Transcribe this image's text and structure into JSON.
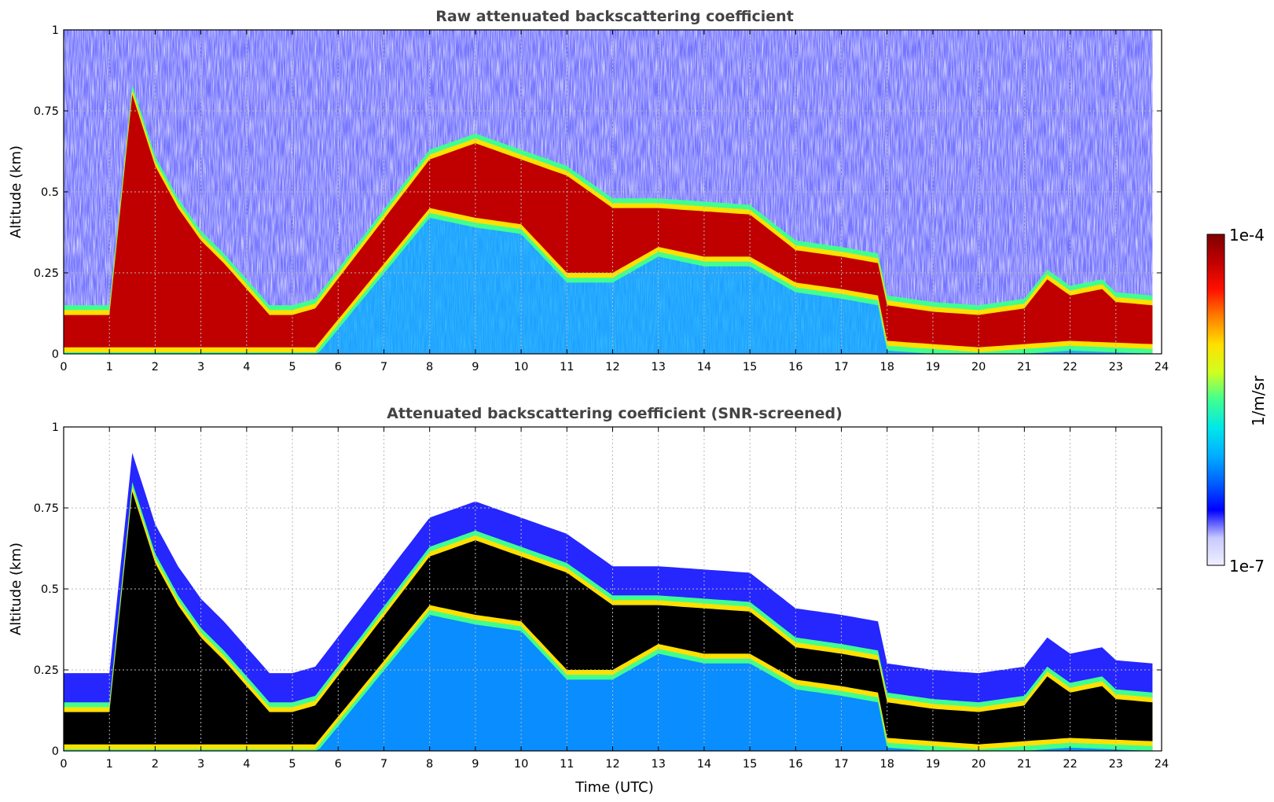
{
  "chart_data": [
    {
      "type": "heatmap",
      "title": "Raw attenuated backscattering coefficient",
      "xlabel": "",
      "ylabel": "Altitude (km)",
      "xlim": [
        0,
        24
      ],
      "ylim": [
        0,
        1
      ],
      "xticks": [
        "0",
        "1",
        "2",
        "3",
        "4",
        "5",
        "6",
        "7",
        "8",
        "9",
        "10",
        "11",
        "12",
        "13",
        "14",
        "15",
        "16",
        "17",
        "18",
        "19",
        "20",
        "21",
        "22",
        "23",
        "24"
      ],
      "yticks": [
        "0",
        "0.25",
        "0.5",
        "0.75",
        "1"
      ],
      "yticks_values": [
        0,
        0.25,
        0.5,
        0.75,
        1
      ],
      "grid": true,
      "screened": false,
      "cloud_layer_top_km": [
        [
          0,
          0.12
        ],
        [
          0.5,
          0.12
        ],
        [
          1.0,
          0.12
        ],
        [
          1.5,
          0.8
        ],
        [
          2.0,
          0.58
        ],
        [
          2.5,
          0.45
        ],
        [
          3.0,
          0.35
        ],
        [
          3.5,
          0.28
        ],
        [
          4.0,
          0.2
        ],
        [
          4.5,
          0.12
        ],
        [
          5.0,
          0.12
        ],
        [
          5.5,
          0.14
        ],
        [
          8.0,
          0.6
        ],
        [
          9.0,
          0.65
        ],
        [
          10.0,
          0.6
        ],
        [
          11.0,
          0.55
        ],
        [
          12.0,
          0.45
        ],
        [
          13.0,
          0.45
        ],
        [
          14.0,
          0.44
        ],
        [
          15.0,
          0.43
        ],
        [
          16.0,
          0.32
        ],
        [
          17.0,
          0.3
        ],
        [
          17.8,
          0.28
        ],
        [
          18.0,
          0.15
        ],
        [
          19.0,
          0.13
        ],
        [
          20.0,
          0.12
        ],
        [
          21.0,
          0.14
        ],
        [
          21.5,
          0.23
        ],
        [
          22.0,
          0.18
        ],
        [
          22.7,
          0.2
        ],
        [
          23.0,
          0.16
        ],
        [
          23.8,
          0.15
        ]
      ],
      "cloud_layer_bottom_km": [
        [
          0,
          0.02
        ],
        [
          5.5,
          0.02
        ],
        [
          8.0,
          0.45
        ],
        [
          9.0,
          0.42
        ],
        [
          10.0,
          0.4
        ],
        [
          11.0,
          0.25
        ],
        [
          12.0,
          0.25
        ],
        [
          13.0,
          0.33
        ],
        [
          14.0,
          0.3
        ],
        [
          15.0,
          0.3
        ],
        [
          16.0,
          0.22
        ],
        [
          17.0,
          0.2
        ],
        [
          17.8,
          0.18
        ],
        [
          18.0,
          0.04
        ],
        [
          19.0,
          0.03
        ],
        [
          20.0,
          0.02
        ],
        [
          21.0,
          0.03
        ],
        [
          22.0,
          0.04
        ],
        [
          23.8,
          0.03
        ]
      ]
    },
    {
      "type": "heatmap",
      "title": "Attenuated backscattering coefficient (SNR-screened)",
      "xlabel": "Time (UTC)",
      "ylabel": "Altitude (km)",
      "xlim": [
        0,
        24
      ],
      "ylim": [
        0,
        1
      ],
      "xticks": [
        "0",
        "1",
        "2",
        "3",
        "4",
        "5",
        "6",
        "7",
        "8",
        "9",
        "10",
        "11",
        "12",
        "13",
        "14",
        "15",
        "16",
        "17",
        "18",
        "19",
        "20",
        "21",
        "22",
        "23",
        "24"
      ],
      "yticks": [
        "0",
        "0.25",
        "0.5",
        "0.75",
        "1"
      ],
      "yticks_values": [
        0,
        0.25,
        0.5,
        0.75,
        1
      ],
      "grid": true,
      "screened": true,
      "cloud_layer_top_km": [
        [
          0,
          0.12
        ],
        [
          0.5,
          0.12
        ],
        [
          1.0,
          0.12
        ],
        [
          1.5,
          0.8
        ],
        [
          2.0,
          0.58
        ],
        [
          2.5,
          0.45
        ],
        [
          3.0,
          0.35
        ],
        [
          3.5,
          0.28
        ],
        [
          4.0,
          0.2
        ],
        [
          4.5,
          0.12
        ],
        [
          5.0,
          0.12
        ],
        [
          5.5,
          0.14
        ],
        [
          8.0,
          0.6
        ],
        [
          9.0,
          0.65
        ],
        [
          10.0,
          0.6
        ],
        [
          11.0,
          0.55
        ],
        [
          12.0,
          0.45
        ],
        [
          13.0,
          0.45
        ],
        [
          14.0,
          0.44
        ],
        [
          15.0,
          0.43
        ],
        [
          16.0,
          0.32
        ],
        [
          17.0,
          0.3
        ],
        [
          17.8,
          0.28
        ],
        [
          18.0,
          0.15
        ],
        [
          19.0,
          0.13
        ],
        [
          20.0,
          0.12
        ],
        [
          21.0,
          0.14
        ],
        [
          21.5,
          0.23
        ],
        [
          22.0,
          0.18
        ],
        [
          22.7,
          0.2
        ],
        [
          23.0,
          0.16
        ],
        [
          23.8,
          0.15
        ]
      ],
      "cloud_layer_bottom_km": [
        [
          0,
          0.02
        ],
        [
          5.5,
          0.02
        ],
        [
          8.0,
          0.45
        ],
        [
          9.0,
          0.42
        ],
        [
          10.0,
          0.4
        ],
        [
          11.0,
          0.25
        ],
        [
          12.0,
          0.25
        ],
        [
          13.0,
          0.33
        ],
        [
          14.0,
          0.3
        ],
        [
          15.0,
          0.3
        ],
        [
          16.0,
          0.22
        ],
        [
          17.0,
          0.2
        ],
        [
          17.8,
          0.18
        ],
        [
          18.0,
          0.04
        ],
        [
          19.0,
          0.03
        ],
        [
          20.0,
          0.02
        ],
        [
          21.0,
          0.03
        ],
        [
          22.0,
          0.04
        ],
        [
          23.8,
          0.03
        ]
      ]
    }
  ],
  "colorbar": {
    "label": "1/m/sr",
    "max_label": "1e-4",
    "min_label": "1e-7",
    "scale": "log",
    "colormap": "jet",
    "colors": [
      "#f0f0ff",
      "#c8c8ff",
      "#0000ff",
      "#0060ff",
      "#00b0ff",
      "#00e8e8",
      "#40ff90",
      "#d0ff20",
      "#ffe000",
      "#ff8000",
      "#ff1000",
      "#c00000",
      "#800000"
    ],
    "screened_saturation_color": "#000000"
  }
}
